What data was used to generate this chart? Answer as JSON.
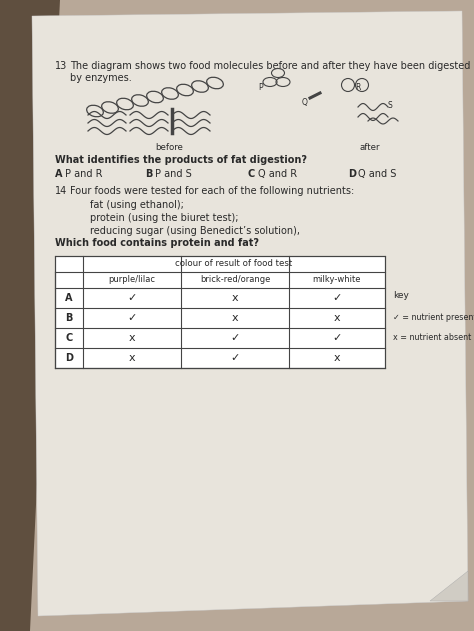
{
  "bg_color": "#b8a898",
  "paper_color": "#e8e4dc",
  "shadow_color": "#6a5a4a",
  "q13_number": "13",
  "q13_text": "The diagram shows two food molecules before and after they have been digested by enzymes.",
  "before_label": "before",
  "after_label": "after",
  "q13_question": "What identifies the products of fat digestion?",
  "q13_opts": [
    [
      "A",
      "P and R"
    ],
    [
      "B",
      "P and S"
    ],
    [
      "C",
      "Q and R"
    ],
    [
      "D",
      "Q and S"
    ]
  ],
  "q14_number": "14",
  "q14_text": "Four foods were tested for each of the following nutrients:",
  "q14_bullets": [
    "fat (using ethanol);",
    "protein (using the biuret test);",
    "reducing sugar (using Benedict’s solution),"
  ],
  "q14_question": "Which food contains protein and fat?",
  "table_header_main": "colour of result of food test",
  "table_col1": "purple/lilac",
  "table_col2": "brick-red/orange",
  "table_col3": "milky-white",
  "table_rows": [
    [
      "A",
      "✓",
      "x",
      "✓"
    ],
    [
      "B",
      "✓",
      "x",
      "x"
    ],
    [
      "C",
      "x",
      "✓",
      "✓"
    ],
    [
      "D",
      "x",
      "✓",
      "x"
    ]
  ],
  "key_title": "key",
  "key_tick": "✓ = nutrient present",
  "key_cross": "x = nutrient absent",
  "text_color": "#2a2a2a",
  "line_color": "#444444"
}
